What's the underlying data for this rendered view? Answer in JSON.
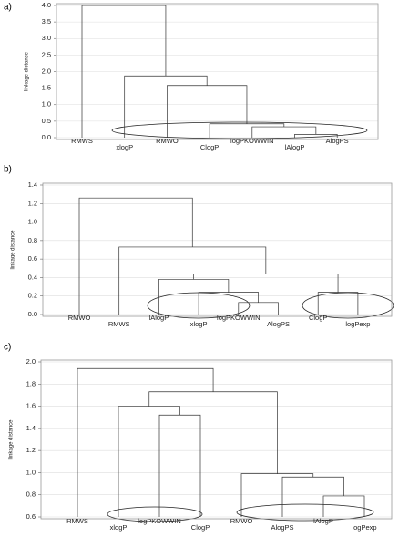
{
  "chart_data": [
    {
      "type": "dendrogram",
      "panel_label": "a)",
      "ylabel": "linkage distance",
      "categories": [
        "RMWS",
        "xlogP",
        "RMWO",
        "ClogP",
        "logPKOWWIN",
        "lAlogP",
        "AlogPS"
      ],
      "merges": [
        {
          "left": 5,
          "right": 6,
          "height": 0.1
        },
        {
          "left": 4,
          "right": 7,
          "height": 0.33
        },
        {
          "left": 3,
          "right": 8,
          "height": 0.42
        },
        {
          "left": 2,
          "right": 9,
          "height": 1.58
        },
        {
          "left": 1,
          "right": 10,
          "height": 1.87
        },
        {
          "left": 0,
          "right": 11,
          "height": 4.0
        }
      ],
      "color": "#333333",
      "ylim": [
        0,
        4
      ],
      "yticks": [
        {
          "value": 0,
          "label": "0.0"
        },
        0.5,
        {
          "value": 1,
          "label": "1.0"
        },
        1.5,
        {
          "value": 2,
          "label": "2.0"
        },
        2.5,
        {
          "value": 3,
          "label": "3.0"
        },
        3.5,
        {
          "value": 4,
          "label": "4.0"
        }
      ],
      "grid": true
    },
    {
      "type": "dendrogram",
      "panel_label": "b)",
      "ylabel": "linkage distance",
      "categories": [
        "RMWO",
        "RMWS",
        "lAlogP",
        "xlogP",
        "logPKOWWIN",
        "AlogPS",
        "ClogP",
        "logPexp"
      ],
      "merges": [
        {
          "left": 4,
          "right": 5,
          "height": 0.13
        },
        {
          "left": 3,
          "right": 8,
          "height": 0.24
        },
        {
          "left": 2,
          "right": 9,
          "height": 0.38
        },
        {
          "left": 6,
          "right": 7,
          "height": 0.24
        },
        {
          "left": 10,
          "right": 11,
          "height": 0.44
        },
        {
          "left": 1,
          "right": 12,
          "height": 0.73
        },
        {
          "left": 0,
          "right": 13,
          "height": 1.26
        }
      ],
      "color": "#333333",
      "ylim": [
        0,
        1.4
      ],
      "yticks": [
        {
          "value": 0,
          "label": "0.0"
        },
        0.2,
        0.4,
        0.6,
        0.8,
        {
          "value": 1,
          "label": "1.0"
        },
        1.2,
        1.4
      ],
      "grid": true
    },
    {
      "type": "dendrogram",
      "panel_label": "c)",
      "ylabel": "linkage distance",
      "categories": [
        "RMWS",
        "xlogP",
        "logPKOWWIN",
        "ClogP",
        "RMWO",
        "AlogPS",
        "lAlogP",
        "logPexp"
      ],
      "merges": [
        {
          "left": 2,
          "right": 3,
          "height": 1.52
        },
        {
          "left": 1,
          "right": 8,
          "height": 1.6
        },
        {
          "left": 6,
          "right": 7,
          "height": 0.79
        },
        {
          "left": 5,
          "right": 10,
          "height": 0.96
        },
        {
          "left": 4,
          "right": 11,
          "height": 0.99
        },
        {
          "left": 9,
          "right": 12,
          "height": 1.73
        },
        {
          "left": 0,
          "right": 13,
          "height": 1.94
        }
      ],
      "color": "#333333",
      "ylim": [
        0.6,
        2
      ],
      "yticks": [
        0.6,
        0.8,
        {
          "value": 1,
          "label": "1.0"
        },
        1.2,
        1.4,
        1.6,
        1.8,
        {
          "value": 2,
          "label": "2.0"
        }
      ],
      "grid": true
    }
  ]
}
